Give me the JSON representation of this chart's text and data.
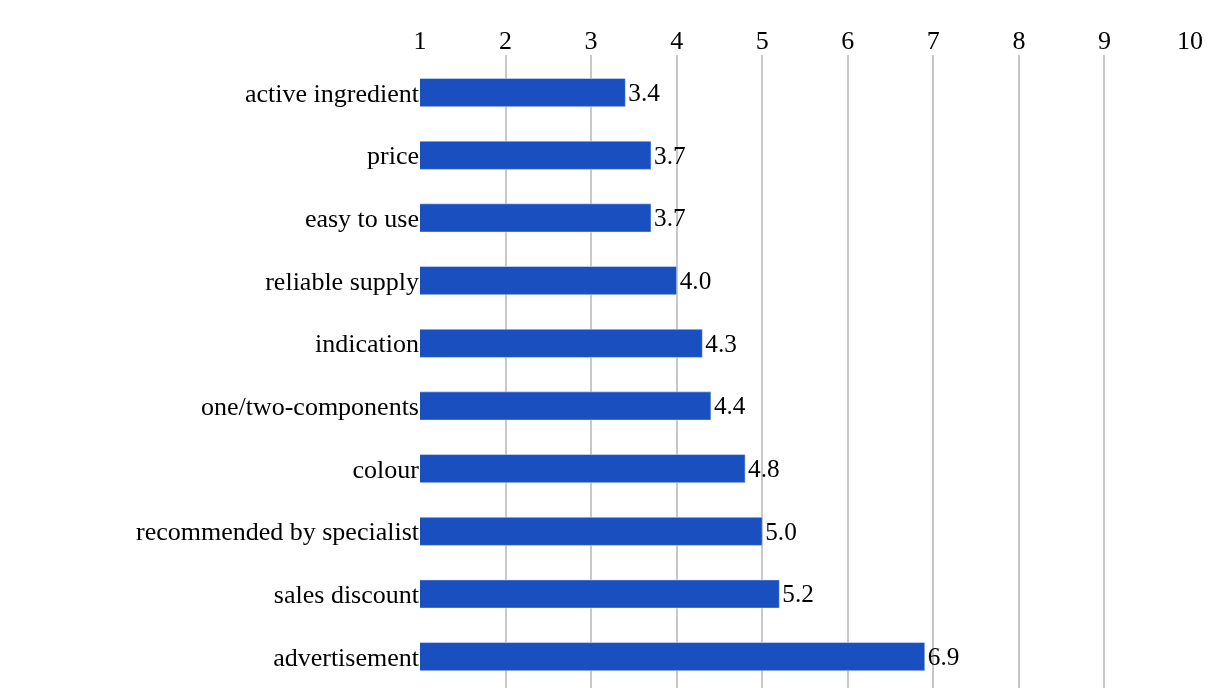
{
  "chart_data": {
    "type": "bar",
    "orientation": "horizontal",
    "categories": [
      "active ingredient",
      "price",
      "easy to use",
      "reliable supply",
      "indication",
      "one/two-components",
      "colour",
      "recommended by specialist",
      "sales discount",
      "advertisement"
    ],
    "values": [
      3.4,
      3.7,
      3.7,
      4.0,
      4.3,
      4.4,
      4.8,
      5.0,
      5.2,
      6.9
    ],
    "value_labels": [
      "3.4",
      "3.7",
      "3.7",
      "4.0",
      "4.3",
      "4.4",
      "4.8",
      "5.0",
      "5.2",
      "6.9"
    ],
    "color": "#1a4fc0",
    "xlim": [
      1,
      10
    ],
    "xticks": [
      1,
      2,
      3,
      4,
      5,
      6,
      7,
      8,
      9,
      10
    ],
    "grid": "x",
    "legend": false
  }
}
